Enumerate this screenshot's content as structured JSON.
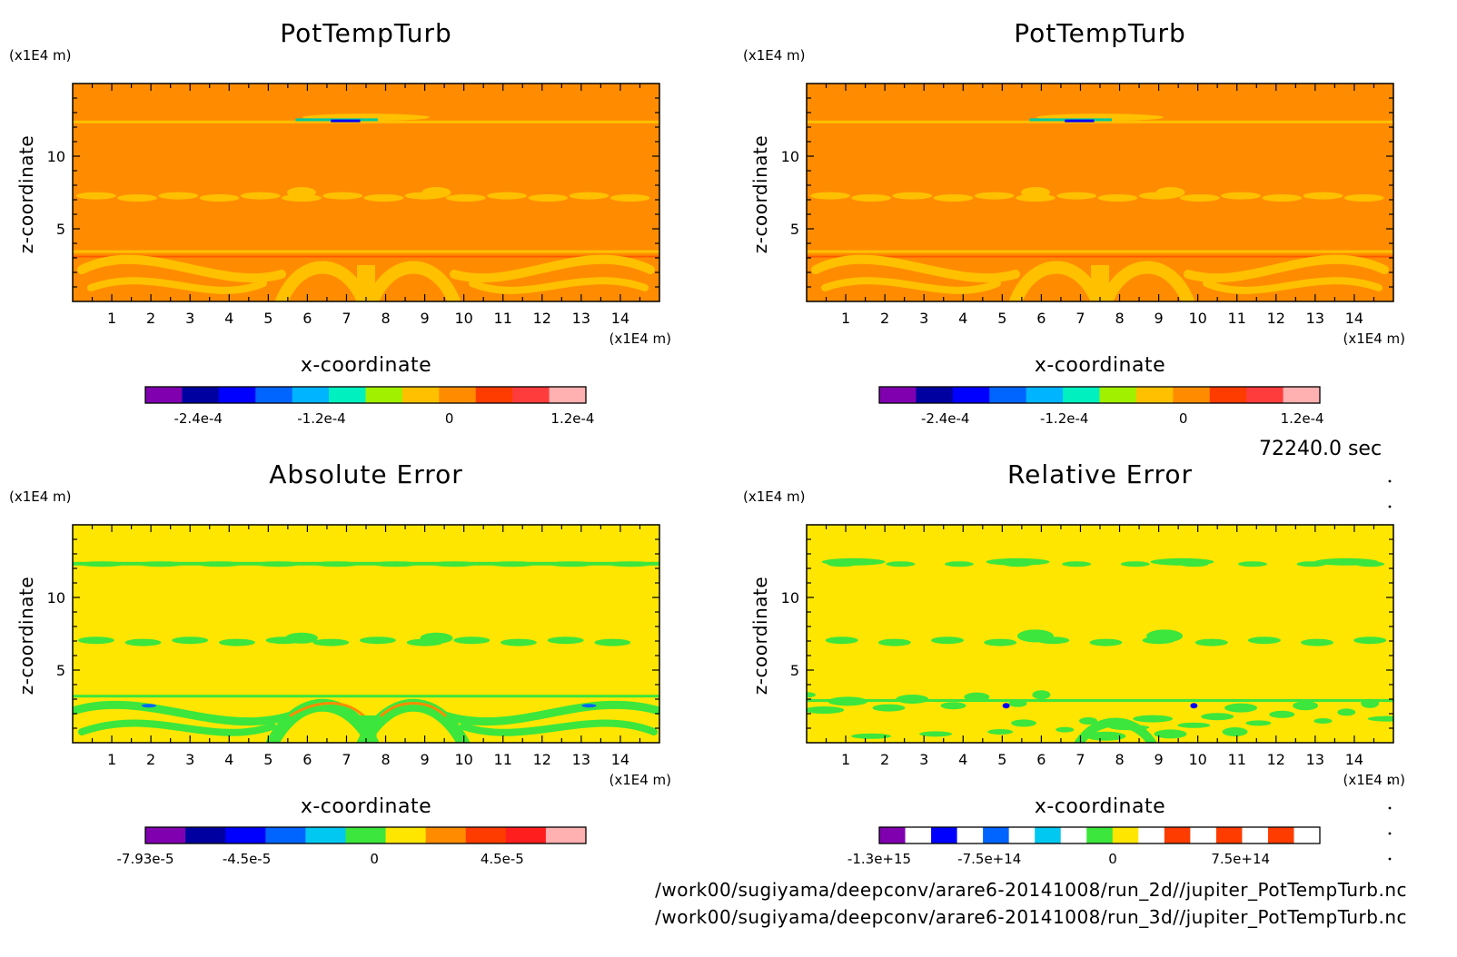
{
  "time_label": "72240.0 sec",
  "file_lines": [
    "/work00/sugiyama/deepconv/arare6-20141008/run_2d//jupiter_PotTempTurb.nc",
    "/work00/sugiyama/deepconv/arare6-20141008/run_3d//jupiter_PotTempTurb.nc"
  ],
  "colors": {
    "orange": "#ff8c00",
    "light_orange": "#ffc000",
    "yellow": "#ffe600",
    "green": "#3ce63c",
    "blue": "#0000ff",
    "red": "#ff3c00"
  },
  "chart_data": [
    {
      "type": "heatmap",
      "title": "PotTempTurb",
      "xlabel": "x-coordinate",
      "ylabel": "z-coordinate",
      "x_unit": "(x1E4 m)",
      "y_unit": "(x1E4 m)",
      "x_ticks": [
        1,
        2,
        3,
        4,
        5,
        6,
        7,
        8,
        9,
        10,
        11,
        12,
        13,
        14
      ],
      "y_ticks": [
        5,
        10
      ],
      "xlim": [
        0,
        15
      ],
      "ylim": [
        0,
        15
      ],
      "background": "#ff8c00",
      "pattern": "field",
      "colorbar": {
        "colors": [
          "#8000b0",
          "#0000a0",
          "#0000ff",
          "#0064ff",
          "#00b4ff",
          "#00f0c0",
          "#a0f000",
          "#ffc000",
          "#ff8c00",
          "#ff3c00",
          "#ff3c3c",
          "#ffb0b0"
        ],
        "tick_labels": [
          "-2.4e-4",
          "-1.2e-4",
          "0",
          "1.2e-4"
        ],
        "tick_fracs": [
          0.12,
          0.4,
          0.69,
          0.97
        ]
      }
    },
    {
      "type": "heatmap",
      "title": "PotTempTurb",
      "xlabel": "x-coordinate",
      "ylabel": "z-coordinate",
      "x_unit": "(x1E4 m)",
      "y_unit": "(x1E4 m)",
      "x_ticks": [
        1,
        2,
        3,
        4,
        5,
        6,
        7,
        8,
        9,
        10,
        11,
        12,
        13,
        14
      ],
      "y_ticks": [
        5,
        10
      ],
      "xlim": [
        0,
        15
      ],
      "ylim": [
        0,
        15
      ],
      "background": "#ff8c00",
      "pattern": "field",
      "colorbar": {
        "colors": [
          "#8000b0",
          "#0000a0",
          "#0000ff",
          "#0064ff",
          "#00b4ff",
          "#00f0c0",
          "#a0f000",
          "#ffc000",
          "#ff8c00",
          "#ff3c00",
          "#ff3c3c",
          "#ffb0b0"
        ],
        "tick_labels": [
          "-2.4e-4",
          "-1.2e-4",
          "0",
          "1.2e-4"
        ],
        "tick_fracs": [
          0.15,
          0.42,
          0.69,
          0.96
        ]
      }
    },
    {
      "type": "heatmap",
      "title": "Absolute Error",
      "xlabel": "x-coordinate",
      "ylabel": "z-coordinate",
      "x_unit": "(x1E4 m)",
      "y_unit": "(x1E4 m)",
      "x_ticks": [
        1,
        2,
        3,
        4,
        5,
        6,
        7,
        8,
        9,
        10,
        11,
        12,
        13,
        14
      ],
      "y_ticks": [
        5,
        10
      ],
      "xlim": [
        0,
        15
      ],
      "ylim": [
        0,
        15
      ],
      "background": "#ffe600",
      "pattern": "error",
      "colorbar": {
        "colors": [
          "#8000b0",
          "#0000a0",
          "#0000ff",
          "#0064ff",
          "#00c8f0",
          "#3ce63c",
          "#ffe600",
          "#ff8c00",
          "#ff3c00",
          "#ff1e1e",
          "#ffb0b0"
        ],
        "tick_labels": [
          "-7.93e-5",
          "-4.5e-5",
          "0",
          "4.5e-5"
        ],
        "tick_fracs": [
          0.0,
          0.23,
          0.52,
          0.81
        ]
      }
    },
    {
      "type": "heatmap",
      "title": "Relative Error",
      "xlabel": "x-coordinate",
      "ylabel": "z-coordinate",
      "x_unit": "(x1E4 m)",
      "y_unit": "(x1E4 m)",
      "x_ticks": [
        1,
        2,
        3,
        4,
        5,
        6,
        7,
        8,
        9,
        10,
        11,
        12,
        13,
        14
      ],
      "y_ticks": [
        5,
        10
      ],
      "xlim": [
        0,
        15
      ],
      "ylim": [
        0,
        15
      ],
      "background": "#ffe600",
      "pattern": "relerr",
      "colorbar": {
        "colors": [
          "#8000b0",
          "#ffffff",
          "#0000ff",
          "#ffffff",
          "#0064ff",
          "#ffffff",
          "#00c8f0",
          "#ffffff",
          "#3ce63c",
          "#ffe600",
          "#ffffff",
          "#ff3c00",
          "#ffffff",
          "#ff3c00",
          "#ffffff",
          "#ff3c00",
          "#ffffff"
        ],
        "tick_labels": [
          "-1.3e+15",
          "-7.5e+14",
          "0",
          "7.5e+14"
        ],
        "tick_fracs": [
          0.0,
          0.25,
          0.53,
          0.82
        ]
      }
    }
  ]
}
